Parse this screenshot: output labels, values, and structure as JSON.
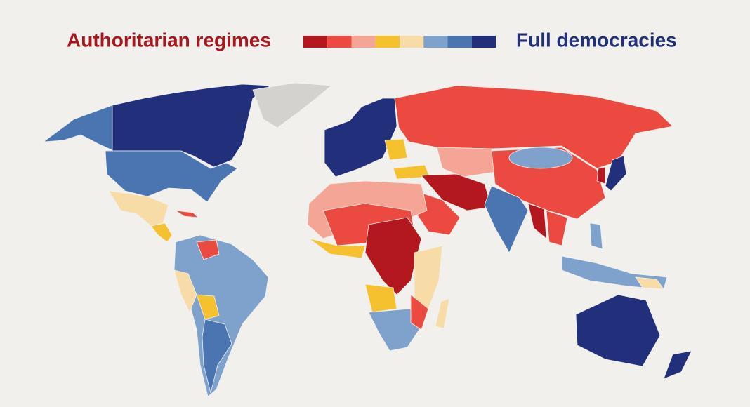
{
  "legend": {
    "left_label": "Authoritarian regimes",
    "right_label": "Full democracies",
    "colors": [
      "#b3181e",
      "#ec4a41",
      "#f4a595",
      "#f6c12e",
      "#f8dca8",
      "#7fa2cd",
      "#4a75b0",
      "#222f7a"
    ]
  }
}
